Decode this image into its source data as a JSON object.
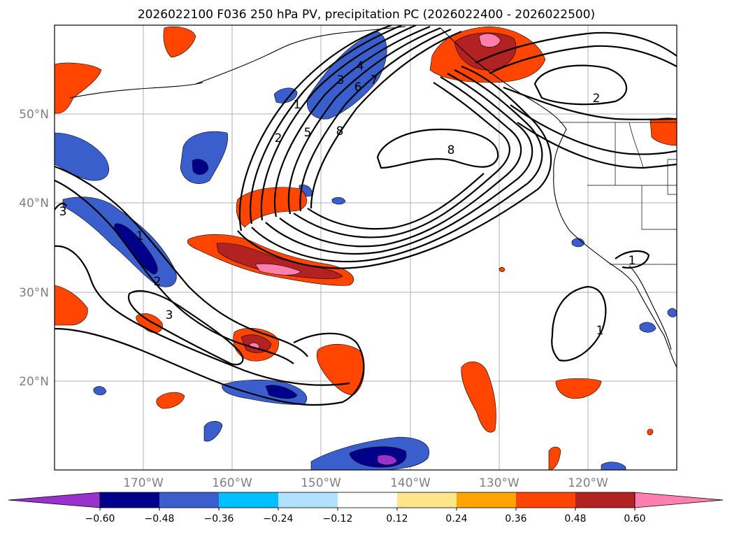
{
  "title": "2026022100 F036 250 hPa PV, precipitation PC (2026022400 - 2026022500)",
  "lat_labels": [
    "50°N",
    "40°N",
    "30°N",
    "20°N"
  ],
  "lon_labels": [
    "170°W",
    "160°W",
    "150°W",
    "140°W",
    "130°W",
    "120°W"
  ],
  "colorbar": {
    "ticks": [
      "−0.60",
      "−0.48",
      "−0.36",
      "−0.24",
      "−0.12",
      "0.12",
      "0.24",
      "0.36",
      "0.48",
      "0.60"
    ],
    "colors": [
      "#9932cc",
      "#00008b",
      "#3a5fcd",
      "#00bfff",
      "#b0e2ff",
      "#ffffff",
      "#fde68a",
      "#ffa500",
      "#ff4500",
      "#b22222",
      "#ff7fae"
    ],
    "extend": "both"
  },
  "pv_contour_labels": [
    "1",
    "2",
    "3",
    "4",
    "5",
    "6",
    "7",
    "8",
    "8",
    "2",
    "1",
    "2",
    "3",
    "3",
    "1",
    "1"
  ],
  "map": {
    "lon_range": [
      -180,
      -110
    ],
    "lat_range": [
      10,
      60
    ],
    "fields": [
      "250 hPa PV (contours)",
      "precipitation PC (shaded)"
    ]
  }
}
